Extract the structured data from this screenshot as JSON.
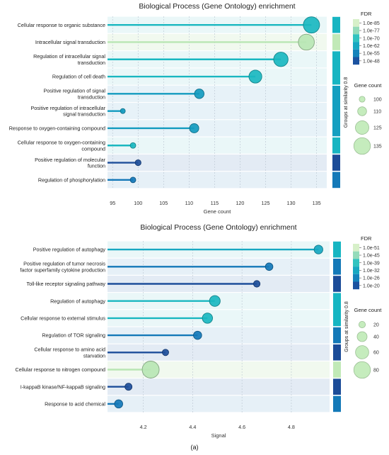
{
  "chart_data": [
    {
      "type": "lollipop",
      "title": "Biological Process (Gene Ontology) enrichment",
      "xlabel": "Gene count",
      "xlim": [
        94,
        137
      ],
      "xticks": [
        "95",
        "100",
        "105",
        "110",
        "115",
        "120",
        "125",
        "130",
        "135"
      ],
      "categories": [
        [
          "Cellular response to organic substance"
        ],
        [
          "Intracellular signal transduction"
        ],
        [
          "Regulation of intracellular signal",
          "transduction"
        ],
        [
          "Regulation of cell death"
        ],
        [
          "Positive regulation of signal",
          "transduction"
        ],
        [
          "Positive regulation of intracellular",
          "signal transduction"
        ],
        [
          "Response to oxygen-containing compound"
        ],
        [
          "Cellular response to oxygen-containing",
          "compound"
        ],
        [
          "Positive regulation of molecular",
          "function"
        ],
        [
          "Regulation of phosphorylation"
        ]
      ],
      "values": [
        134,
        133,
        128,
        123,
        112,
        97,
        111,
        99,
        100,
        99
      ],
      "sizes": [
        134,
        133,
        128,
        123,
        112,
        97,
        111,
        99,
        100,
        99
      ],
      "colors": [
        "#1ab7c0",
        "#b9e6b4",
        "#1ab7c0",
        "#1ab7c0",
        "#139bbf",
        "#139bbf",
        "#139bbf",
        "#1ab7c0",
        "#1d4e9a",
        "#1478b8"
      ],
      "groups": [
        "#17b5c2",
        "#c1e9b7",
        "#17b5c2",
        "#17b5c2",
        "#149fc0",
        "#149fc0",
        "#149fc0",
        "#17b5c2",
        "#1c4c98",
        "#1479b8"
      ],
      "group_bands": [
        {
          "start": 0,
          "end": 0,
          "color": "#17b5c2"
        },
        {
          "start": 1,
          "end": 1,
          "color": "#c1e9b7"
        },
        {
          "start": 2,
          "end": 3,
          "color": "#17b5c2"
        },
        {
          "start": 4,
          "end": 6,
          "color": "#149fc0"
        },
        {
          "start": 7,
          "end": 7,
          "color": "#17b5c2"
        },
        {
          "start": 8,
          "end": 8,
          "color": "#1c4c98"
        },
        {
          "start": 9,
          "end": 9,
          "color": "#1479b8"
        }
      ],
      "row_bg": [
        "#eaf7f8",
        "#f1f9ef",
        "#eaf7f8",
        "#eaf7f8",
        "#e7f2f8",
        "#e7f2f8",
        "#e7f2f8",
        "#eaf7f8",
        "#e3ebf4",
        "#e6f0f7"
      ],
      "group_label": "Groups at similarity 0.8",
      "fdr_legend": {
        "title": "FDR",
        "labels": [
          "1.0e-85",
          "1.0e-77",
          "1.0e-70",
          "1.0e-62",
          "1.0e-55",
          "1.0e-48"
        ],
        "colors": [
          "#d7f0c9",
          "#94dbba",
          "#31c3c0",
          "#17a8c1",
          "#1583bb",
          "#1b52a0"
        ]
      },
      "size_legend": {
        "title": "Gene count",
        "labels": [
          "100",
          "110",
          "125",
          "135"
        ],
        "values": [
          100,
          110,
          125,
          135
        ]
      },
      "size_domain": [
        97,
        134
      ]
    },
    {
      "type": "lollipop",
      "title": "Biological Process (Gene Ontology) enrichment",
      "xlabel": "Signal",
      "xlim": [
        4.055,
        4.955
      ],
      "xticks": [
        "4.2",
        "4.4",
        "4.6",
        "4.8"
      ],
      "xtick_values": [
        4.2,
        4.4,
        4.6,
        4.8
      ],
      "categories": [
        [
          "Positive regulation of autophagy"
        ],
        [
          "Positive regulation of tumor necrosis",
          "factor superfamily cytokine production"
        ],
        [
          "Toll-like receptor signaling pathway"
        ],
        [
          "Regulation of autophagy"
        ],
        [
          "Cellular response to external stimulus"
        ],
        [
          "Regulation of TOR signaling"
        ],
        [
          "Cellular response to amino acid",
          "starvation"
        ],
        [
          "Cellular response to nitrogen compound"
        ],
        [
          "I-kappaB kinase/NF-kappaB signaling"
        ],
        [
          "Response to acid chemical"
        ]
      ],
      "values": [
        4.91,
        4.71,
        4.66,
        4.49,
        4.46,
        4.42,
        4.29,
        4.23,
        4.14,
        4.1
      ],
      "sizes": [
        33,
        26,
        20,
        45,
        42,
        30,
        19,
        82,
        23,
        30
      ],
      "colors": [
        "#17a8c1",
        "#1478b8",
        "#1d4e9a",
        "#1ab7c0",
        "#1ab7c0",
        "#1478b8",
        "#1d4e9a",
        "#b9e6b4",
        "#1d4e9a",
        "#1478b8"
      ],
      "groups": [
        "#17b5c2",
        "#1479b8",
        "#1c4c98",
        "#17b5c2",
        "#17b5c2",
        "#1479b8",
        "#1c4c98",
        "#c1e9b7",
        "#1c4c98",
        "#1479b8"
      ],
      "group_bands": [
        {
          "start": 0,
          "end": 0,
          "color": "#17b5c2"
        },
        {
          "start": 1,
          "end": 1,
          "color": "#1479b8"
        },
        {
          "start": 2,
          "end": 2,
          "color": "#1c4c98"
        },
        {
          "start": 3,
          "end": 4,
          "color": "#17b5c2"
        },
        {
          "start": 5,
          "end": 5,
          "color": "#1479b8"
        },
        {
          "start": 6,
          "end": 6,
          "color": "#1c4c98"
        },
        {
          "start": 7,
          "end": 7,
          "color": "#c1e9b7"
        },
        {
          "start": 8,
          "end": 8,
          "color": "#1c4c98"
        },
        {
          "start": 9,
          "end": 9,
          "color": "#1479b8"
        }
      ],
      "row_bg": [
        "#eaf7f8",
        "#e6f0f7",
        "#e3ebf4",
        "#eaf7f8",
        "#eaf7f8",
        "#e6f0f7",
        "#e3ebf4",
        "#f1f9ef",
        "#e3ebf4",
        "#e6f0f7"
      ],
      "group_label": "Groups at similarity 0.8",
      "fdr_legend": {
        "title": "FDR",
        "labels": [
          "1.0e-51",
          "1.0e-45",
          "1.0e-39",
          "1.0e-32",
          "1.0e-26",
          "1.0e-20"
        ],
        "colors": [
          "#d7f0c9",
          "#94dbba",
          "#31c3c0",
          "#17a8c1",
          "#1583bb",
          "#1b52a0"
        ]
      },
      "size_legend": {
        "title": "Gene count",
        "labels": [
          "20",
          "40",
          "60",
          "80"
        ],
        "values": [
          20,
          40,
          60,
          80
        ]
      },
      "size_domain": [
        19,
        82
      ]
    }
  ],
  "caption": "(a)"
}
